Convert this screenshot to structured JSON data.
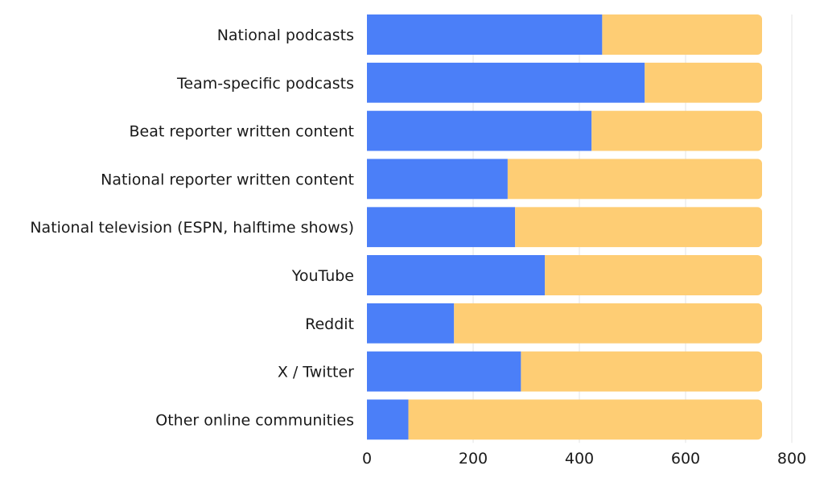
{
  "chart_data": {
    "type": "bar",
    "orientation": "horizontal",
    "stacked": true,
    "title": "",
    "xlabel": "",
    "ylabel": "",
    "categories": [
      "National podcasts",
      "Team-specific podcasts",
      "Beat reporter written content",
      "National reporter written content",
      "National television (ESPN, halftime shows)",
      "YouTube",
      "Reddit",
      "X / Twitter",
      "Other online communities"
    ],
    "series": [
      {
        "color": "#4b7ff8",
        "values": [
          443,
          523,
          423,
          265,
          279,
          335,
          164,
          290,
          78
        ]
      },
      {
        "color": "#fecd74",
        "values": [
          301,
          221,
          321,
          479,
          465,
          409,
          580,
          454,
          666
        ]
      }
    ],
    "xlim": [
      0,
      800
    ],
    "xticks": [
      0,
      200,
      400,
      600,
      800
    ],
    "grid": "vertical",
    "legend": "none"
  }
}
